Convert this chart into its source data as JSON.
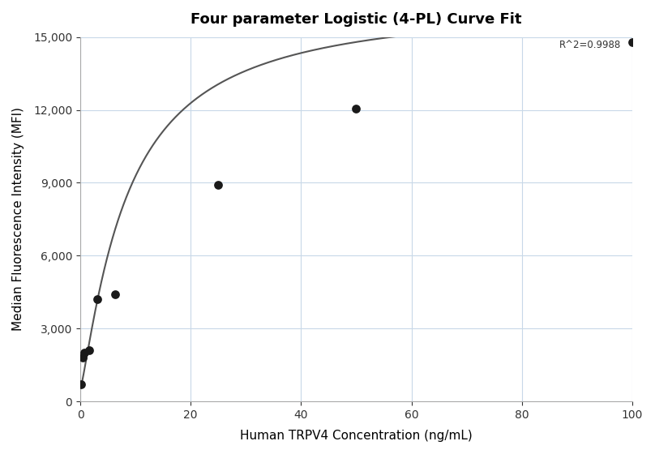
{
  "title": "Four parameter Logistic (4-PL) Curve Fit",
  "xlabel": "Human TRPV4 Concentration (ng/mL)",
  "ylabel": "Median Fluorescence Intensity (MFI)",
  "scatter_x": [
    0.098,
    0.39,
    0.78,
    1.56,
    3.125,
    6.25,
    25.0,
    50.0,
    100.0
  ],
  "scatter_y": [
    700,
    1800,
    2000,
    2100,
    4200,
    4400,
    8900,
    12050,
    14800
  ],
  "xlim": [
    0,
    100
  ],
  "ylim": [
    0,
    15000
  ],
  "xticks": [
    0,
    20,
    40,
    60,
    80,
    100
  ],
  "yticks": [
    0,
    3000,
    6000,
    9000,
    12000,
    15000
  ],
  "r_squared": "R^2=0.9988",
  "curve_color": "#555555",
  "scatter_color": "#1a1a1a",
  "grid_color": "#c8d8e8",
  "background_color": "#ffffff",
  "4pl_A": 500,
  "4pl_B": 1.2,
  "4pl_C": 8.5,
  "4pl_D": 16500
}
